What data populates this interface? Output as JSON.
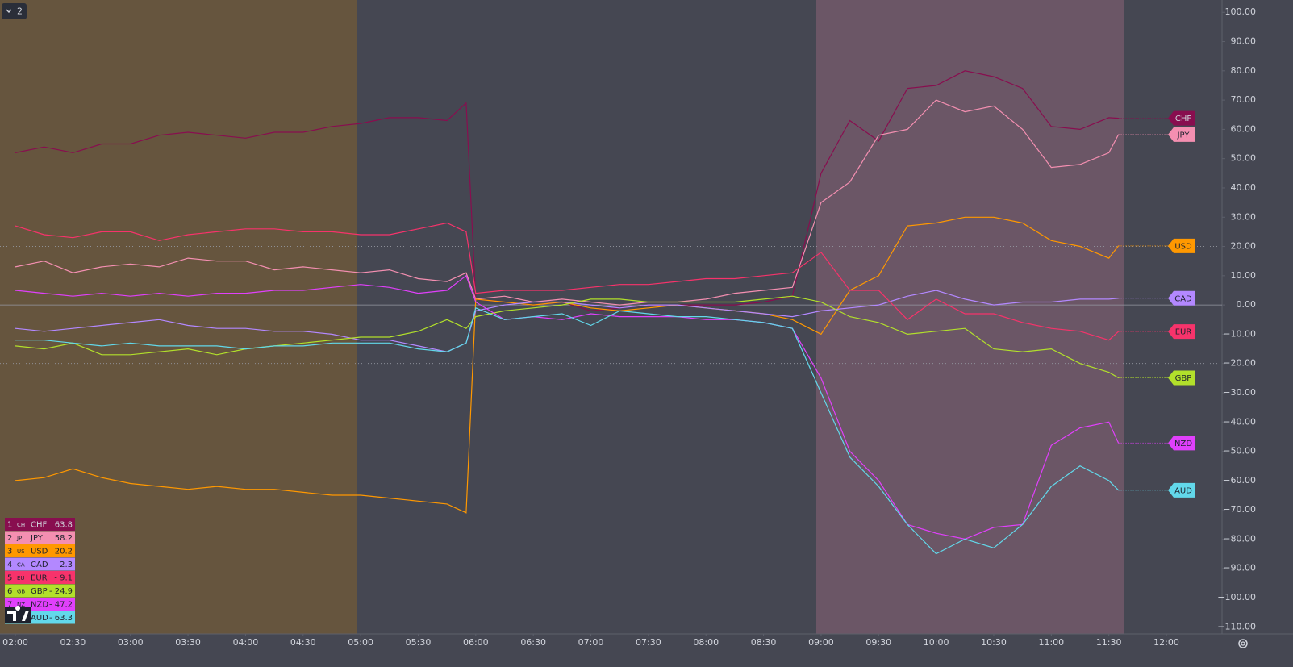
{
  "chart_data": {
    "type": "line",
    "button_label": "2",
    "x": [
      "02:00",
      "02:15",
      "02:30",
      "02:45",
      "03:00",
      "03:15",
      "03:30",
      "03:45",
      "04:00",
      "04:15",
      "04:30",
      "04:45",
      "05:00",
      "05:15",
      "05:30",
      "05:45",
      "05:55",
      "06:00",
      "06:15",
      "06:30",
      "06:45",
      "07:00",
      "07:15",
      "07:30",
      "07:45",
      "08:00",
      "08:15",
      "08:30",
      "08:45",
      "09:00",
      "09:15",
      "09:30",
      "09:45",
      "10:00",
      "10:15",
      "10:30",
      "10:45",
      "11:00",
      "11:15",
      "11:30",
      "11:35"
    ],
    "xlim": [
      "01:52",
      "12:29"
    ],
    "xticks": [
      "02:00",
      "02:30",
      "03:00",
      "03:30",
      "04:00",
      "04:30",
      "05:00",
      "05:30",
      "06:00",
      "06:30",
      "07:00",
      "07:30",
      "08:00",
      "08:30",
      "09:00",
      "09:30",
      "10:00",
      "10:30",
      "11:00",
      "11:30",
      "12:00"
    ],
    "ylim": [
      -112.4,
      104.2
    ],
    "yticks": [
      {
        "value": 100,
        "label": "100.00"
      },
      {
        "value": 90,
        "label": "90.00"
      },
      {
        "value": 80,
        "label": "80.00"
      },
      {
        "value": 70,
        "label": "70.00"
      },
      {
        "value": 60,
        "label": "60.00"
      },
      {
        "value": 50,
        "label": "50.00"
      },
      {
        "value": 40,
        "label": "40.00"
      },
      {
        "value": 30,
        "label": "30.00"
      },
      {
        "value": 20,
        "label": "20.00"
      },
      {
        "value": 10,
        "label": "10.00"
      },
      {
        "value": 0,
        "label": "0.00"
      },
      {
        "value": -10,
        "label": "−10.00"
      },
      {
        "value": -20,
        "label": "−20.00"
      },
      {
        "value": -30,
        "label": "−30.00"
      },
      {
        "value": -40,
        "label": "−40.00"
      },
      {
        "value": -50,
        "label": "−50.00"
      },
      {
        "value": -60,
        "label": "−60.00"
      },
      {
        "value": -70,
        "label": "−70.00"
      },
      {
        "value": -80,
        "label": "−80.00"
      },
      {
        "value": -90,
        "label": "−90.00"
      },
      {
        "value": -100,
        "label": "−100.00"
      },
      {
        "value": -110,
        "label": "−110.00"
      }
    ],
    "levels": [
      20,
      -20
    ],
    "zero_line": true,
    "series": [
      {
        "index": 1,
        "code": "CH",
        "name": "CHF",
        "color": "#880e4f",
        "current": {
          "value": 63.8,
          "label": "63.8"
        },
        "values": [
          52,
          54,
          52,
          55,
          55,
          58,
          59,
          58,
          57,
          59,
          59,
          61,
          62,
          64,
          64,
          63,
          69,
          2,
          1,
          0,
          1,
          -2,
          -1,
          0,
          0,
          0,
          0,
          1,
          3,
          45,
          63,
          56,
          74,
          75,
          80,
          78,
          74,
          61,
          60,
          64,
          63.8
        ]
      },
      {
        "index": 2,
        "code": "JP",
        "name": "JPY",
        "color": "#f48fb1",
        "current": {
          "value": 58.2,
          "label": "58.2"
        },
        "values": [
          13,
          15,
          11,
          13,
          14,
          13,
          16,
          15,
          15,
          12,
          13,
          12,
          11,
          12,
          9,
          8,
          11,
          2,
          3,
          1,
          2,
          1,
          0,
          1,
          1,
          2,
          4,
          5,
          6,
          35,
          42,
          58,
          60,
          70,
          66,
          68,
          60,
          47,
          48,
          52,
          58.2
        ]
      },
      {
        "index": 3,
        "code": "US",
        "name": "USD",
        "color": "#ff9800",
        "current": {
          "value": 20.2,
          "label": "20.2"
        },
        "values": [
          -60,
          -59,
          -56,
          -59,
          -61,
          -62,
          -63,
          -62,
          -63,
          -63,
          -64,
          -65,
          -65,
          -66,
          -67,
          -68,
          -71,
          2,
          1,
          0,
          1,
          -1,
          -2,
          -1,
          0,
          -1,
          -2,
          -3,
          -5,
          -10,
          5,
          10,
          27,
          28,
          30,
          30,
          28,
          22,
          20,
          16,
          20.2
        ]
      },
      {
        "index": 4,
        "code": "CA",
        "name": "CAD",
        "color": "#b388ff",
        "current": {
          "value": 2.3,
          "label": "2.3"
        },
        "values": [
          -8,
          -9,
          -8,
          -7,
          -6,
          -5,
          -7,
          -8,
          -8,
          -9,
          -9,
          -10,
          -12,
          -12,
          -14,
          -16,
          -13,
          -2,
          0,
          1,
          1,
          0,
          -1,
          0,
          0,
          -1,
          -2,
          -3,
          -4,
          -2,
          -1,
          0,
          3,
          5,
          2,
          0,
          1,
          1,
          2,
          2,
          2.3
        ]
      },
      {
        "index": 5,
        "code": "EU",
        "name": "EUR",
        "color": "#f7336b",
        "current": {
          "value": -9.1,
          "label": "- 9.1"
        },
        "values": [
          27,
          24,
          23,
          25,
          25,
          22,
          24,
          25,
          26,
          26,
          25,
          25,
          24,
          24,
          26,
          28,
          25,
          4,
          5,
          5,
          5,
          6,
          7,
          7,
          8,
          9,
          9,
          10,
          11,
          18,
          5,
          5,
          -5,
          2,
          -3,
          -3,
          -6,
          -8,
          -9,
          -12,
          -9.1
        ]
      },
      {
        "index": 6,
        "code": "GB",
        "name": "GBP",
        "color": "#b2e02b",
        "current": {
          "value": -24.9,
          "label": "- 24.9"
        },
        "values": [
          -14,
          -15,
          -13,
          -17,
          -17,
          -16,
          -15,
          -17,
          -15,
          -14,
          -13,
          -12,
          -11,
          -11,
          -9,
          -5,
          -8,
          -4,
          -2,
          -1,
          0,
          2,
          2,
          1,
          1,
          1,
          1,
          2,
          3,
          1,
          -4,
          -6,
          -10,
          -9,
          -8,
          -15,
          -16,
          -15,
          -20,
          -23,
          -24.9
        ]
      },
      {
        "index": 7,
        "code": "NZ",
        "name": "NZD",
        "color": "#e040fb",
        "current": {
          "value": -47.2,
          "label": "- 47.2"
        },
        "values": [
          5,
          4,
          3,
          4,
          3,
          4,
          3,
          4,
          4,
          5,
          5,
          6,
          7,
          6,
          4,
          5,
          10,
          1,
          -5,
          -4,
          -5,
          -3,
          -4,
          -4,
          -4,
          -5,
          -5,
          -6,
          -8,
          -25,
          -50,
          -60,
          -75,
          -78,
          -80,
          -76,
          -75,
          -48,
          -42,
          -40,
          -47.2
        ]
      },
      {
        "index": 8,
        "code": "AU",
        "name": "AUD",
        "color": "#62d8ea",
        "current": {
          "value": -63.3,
          "label": "- 63.3"
        },
        "values": [
          -12,
          -12,
          -13,
          -14,
          -13,
          -14,
          -14,
          -14,
          -15,
          -14,
          -14,
          -13,
          -13,
          -13,
          -15,
          -16,
          -13,
          -1,
          -5,
          -4,
          -3,
          -7,
          -2,
          -3,
          -4,
          -4,
          -5,
          -6,
          -8,
          -30,
          -52,
          -62,
          -75,
          -85,
          -80,
          -83,
          -75,
          -62,
          -55,
          -60,
          -63.3
        ]
      }
    ]
  }
}
